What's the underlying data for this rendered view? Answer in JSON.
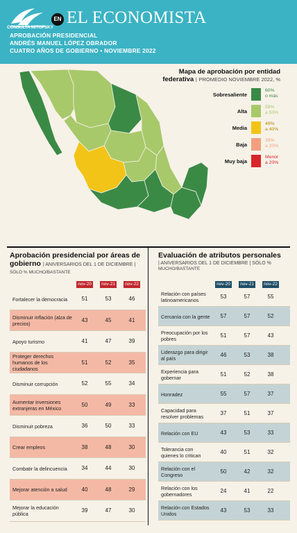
{
  "header": {
    "logo_text": "CONSULTA MITOFSKY",
    "en_badge": "EN",
    "brand": "EL ECONOMISTA",
    "line1": "APROBACIÓN PRESIDENCIAL",
    "line2": "ANDRÉS MANUEL LÓPEZ OBRADOR",
    "line3": "CUATRO AÑOS DE GOBIERNO • NOVIEMBRE 2022"
  },
  "map": {
    "title_line1": "Mapa de aprobación por entidad",
    "title_line2": "federativa",
    "title_sub": "PROMEDIO NOVIEMBRE 2022, %",
    "legend": [
      {
        "label": "Sobresaliente",
        "range1": "60%",
        "range2": "o más",
        "color": "#3a8a46"
      },
      {
        "label": "Alta",
        "range1": "59%",
        "range2": "a 50%",
        "color": "#a8c96a"
      },
      {
        "label": "Media",
        "range1": "49%",
        "range2": "a 40%",
        "color": "#f2c418"
      },
      {
        "label": "Baja",
        "range1": "39%",
        "range2": "a 20%",
        "color": "#f0a07e"
      },
      {
        "label": "Muy baja",
        "range1": "Menor",
        "range2": "a 20%",
        "color": "#d8262b"
      }
    ]
  },
  "left_table": {
    "title1": "Aprobación presidencial por áreas de",
    "title2": "gobierno",
    "sub": "ANIVERSARIOS DEL 1 DE DICIEMBRE",
    "note": "SÓLO % MUCHO/BASTANTE",
    "header_color": "#c0272d",
    "columns": [
      "nov-20",
      "nov-21",
      "nov-22"
    ],
    "rows": [
      {
        "label": "Fortalecer la democracia",
        "values": [
          51,
          53,
          46
        ],
        "shade": false
      },
      {
        "label": "Disminuir inflación (alza de precios)",
        "values": [
          43,
          45,
          41
        ],
        "shade": true
      },
      {
        "label": "Apoyo turismo",
        "values": [
          41,
          47,
          39
        ],
        "shade": false
      },
      {
        "label": "Proteger derechos humanos de los ciudadanos",
        "values": [
          51,
          52,
          35
        ],
        "shade": true
      },
      {
        "label": "Disminuir corrupción",
        "values": [
          52,
          55,
          34
        ],
        "shade": false
      },
      {
        "label": "Aumentar inversiones extranjeras en México",
        "values": [
          50,
          49,
          33
        ],
        "shade": true
      },
      {
        "label": "Disminuir pobreza",
        "values": [
          36,
          50,
          33
        ],
        "shade": false
      },
      {
        "label": "Crear empleos",
        "values": [
          38,
          48,
          30
        ],
        "shade": true
      },
      {
        "label": "Combatir la delincuencia",
        "values": [
          34,
          44,
          30
        ],
        "shade": false
      },
      {
        "label": "Mejorar atención a salud",
        "values": [
          40,
          48,
          29
        ],
        "shade": true
      },
      {
        "label": "Mejorar la educación pública",
        "values": [
          39,
          47,
          30
        ],
        "shade": false
      }
    ]
  },
  "right_table": {
    "title1": "Evaluación de atributos personales",
    "sub": "ANIVERSARIOS DEL 1 DE DICIEMBRE",
    "note1": "SÓLO %",
    "note2": "MUCHO/BASTANTE",
    "header_color": "#1f4e66",
    "columns": [
      "nov-20",
      "nov-21",
      "nov-22"
    ],
    "rows": [
      {
        "label": "Relación con países latinoamericanos",
        "values": [
          53,
          57,
          55
        ],
        "shade": false
      },
      {
        "label": "Cercanía con la gente",
        "values": [
          57,
          57,
          52
        ],
        "shade": true
      },
      {
        "label": "Preocupación por los pobres",
        "values": [
          51,
          57,
          43
        ],
        "shade": false
      },
      {
        "label": "Liderazgo para dirigir al país",
        "values": [
          46,
          53,
          38
        ],
        "shade": true
      },
      {
        "label": "Experiencia para gobernar",
        "values": [
          51,
          52,
          38
        ],
        "shade": false
      },
      {
        "label": "Honradez",
        "values": [
          55,
          57,
          37
        ],
        "shade": true
      },
      {
        "label": "Capacidad para resolver problemas",
        "values": [
          37,
          51,
          37
        ],
        "shade": false
      },
      {
        "label": "Relación con EU",
        "values": [
          43,
          53,
          33
        ],
        "shade": true
      },
      {
        "label": "Tolerancia con quienes lo critican",
        "values": [
          40,
          51,
          32
        ],
        "shade": false
      },
      {
        "label": "Relación con el Congreso",
        "values": [
          50,
          42,
          32
        ],
        "shade": true
      },
      {
        "label": "Relación con los gobernadores",
        "values": [
          24,
          41,
          22
        ],
        "shade": false
      },
      {
        "label": "Relación con Estados Unidos",
        "values": [
          43,
          53,
          33
        ],
        "shade": true
      }
    ]
  },
  "chart_data": [
    {
      "type": "table",
      "title": "Aprobación presidencial por áreas de gobierno",
      "columns": [
        "nov-20",
        "nov-21",
        "nov-22"
      ],
      "categories": [
        "Fortalecer la democracia",
        "Disminuir inflación (alza de precios)",
        "Apoyo turismo",
        "Proteger derechos humanos de los ciudadanos",
        "Disminuir corrupción",
        "Aumentar inversiones extranjeras en México",
        "Disminuir pobreza",
        "Crear empleos",
        "Combatir la delincuencia",
        "Mejorar atención a salud",
        "Mejorar la educación pública"
      ],
      "series": [
        {
          "name": "nov-20",
          "values": [
            51,
            43,
            41,
            51,
            52,
            50,
            36,
            38,
            34,
            40,
            39
          ]
        },
        {
          "name": "nov-21",
          "values": [
            53,
            45,
            47,
            52,
            55,
            49,
            50,
            48,
            44,
            48,
            47
          ]
        },
        {
          "name": "nov-22",
          "values": [
            46,
            41,
            39,
            35,
            34,
            33,
            33,
            30,
            30,
            29,
            30
          ]
        }
      ]
    },
    {
      "type": "table",
      "title": "Evaluación de atributos personales",
      "columns": [
        "nov-20",
        "nov-21",
        "nov-22"
      ],
      "categories": [
        "Relación con países latinoamericanos",
        "Cercanía con la gente",
        "Preocupación por los pobres",
        "Liderazgo para dirigir al país",
        "Experiencia para gobernar",
        "Honradez",
        "Capacidad para resolver problemas",
        "Relación con EU",
        "Tolerancia con quienes lo critican",
        "Relación con el Congreso",
        "Relación con los gobernadores",
        "Relación con Estados Unidos"
      ],
      "series": [
        {
          "name": "nov-20",
          "values": [
            53,
            57,
            51,
            46,
            51,
            55,
            37,
            43,
            40,
            50,
            24,
            43
          ]
        },
        {
          "name": "nov-21",
          "values": [
            57,
            57,
            57,
            53,
            52,
            57,
            51,
            53,
            51,
            42,
            41,
            53
          ]
        },
        {
          "name": "nov-22",
          "values": [
            55,
            52,
            43,
            38,
            38,
            37,
            37,
            33,
            32,
            32,
            22,
            33
          ]
        }
      ]
    }
  ]
}
